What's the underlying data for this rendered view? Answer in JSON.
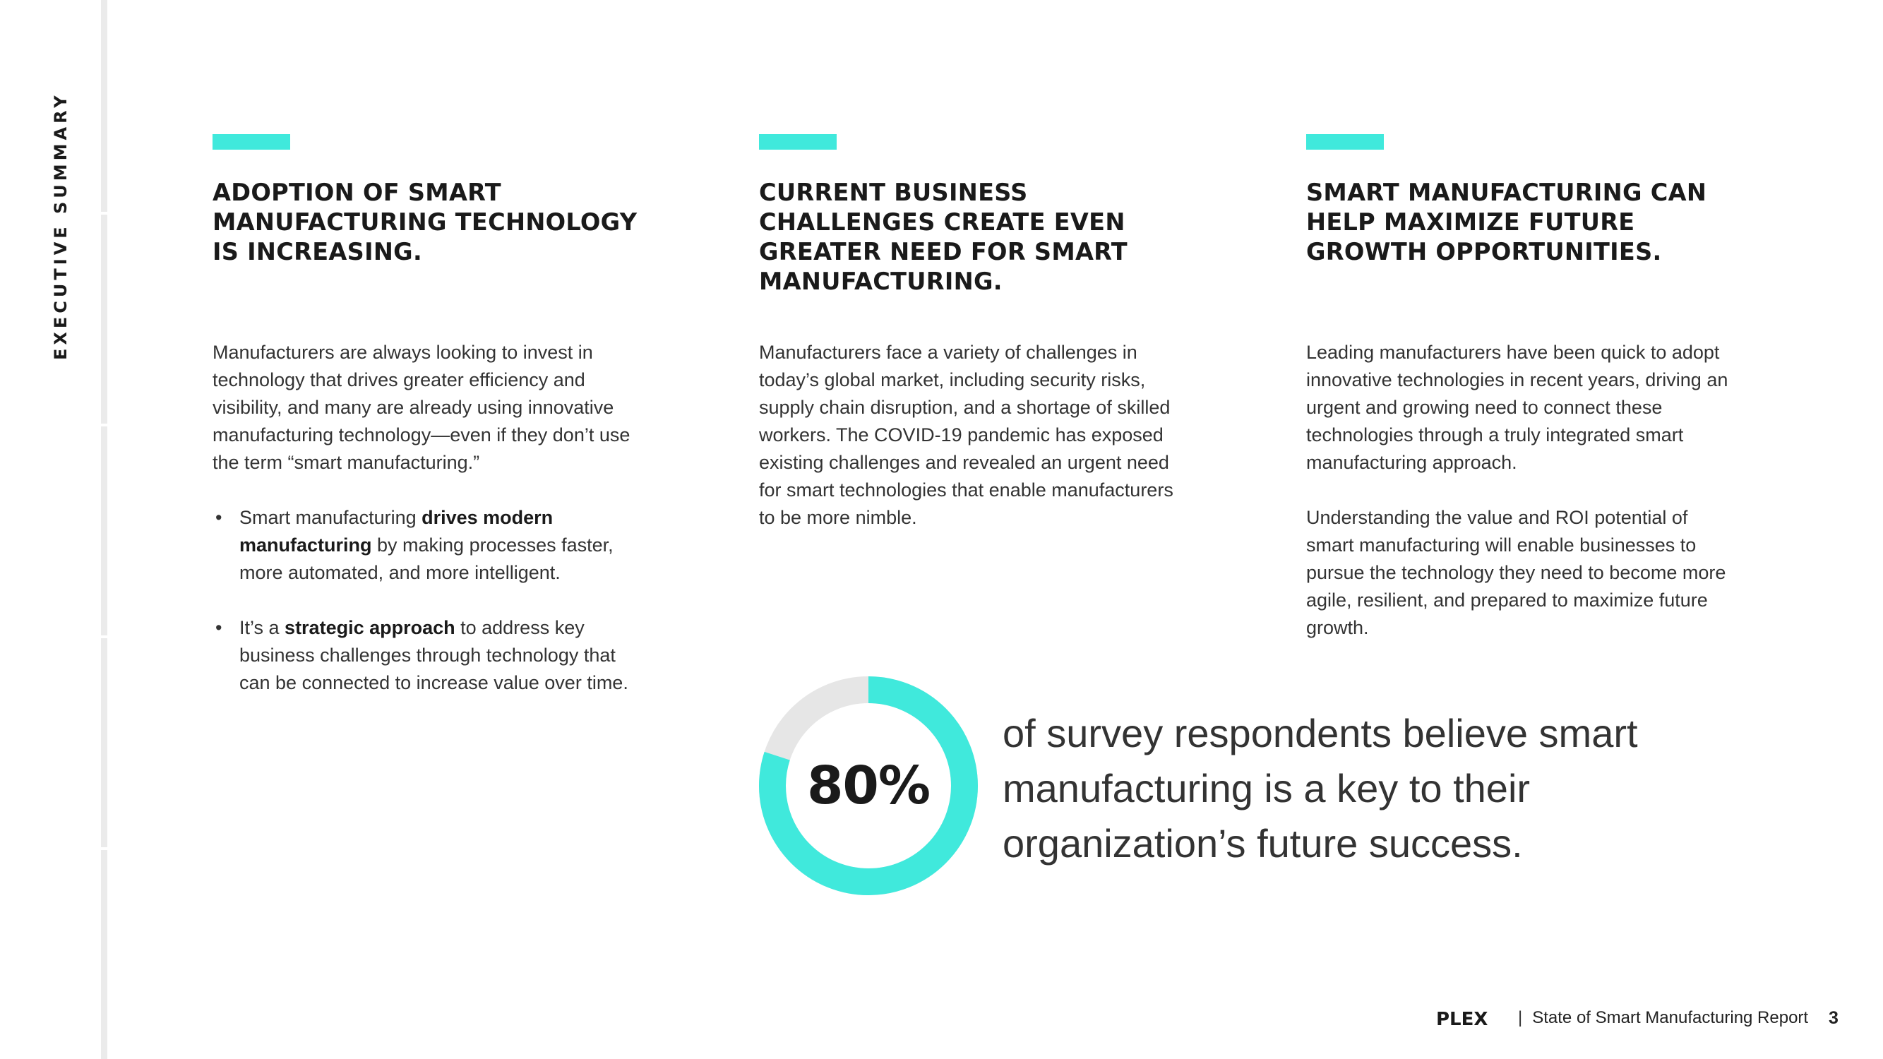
{
  "sidebar": {
    "section_label": "EXECUTIVE SUMMARY"
  },
  "colors": {
    "accent": "#40e9dc",
    "donut_track": "#e6e6e6",
    "text": "#222222"
  },
  "columns": [
    {
      "title": "ADOPTION OF SMART MANUFACTURING TECHNOLOGY IS INCREASING.",
      "paragraph": "Manufacturers are always looking to invest in technology that drives greater efficiency and visibility, and many are already using innovative manufacturing technology—even if they don’t use the term “smart manufacturing.”",
      "bullets": [
        {
          "before": "Smart manufacturing ",
          "bold": "drives modern manufacturing",
          "after": " by making processes faster, more automated, and more intelligent."
        },
        {
          "before": "It’s a ",
          "bold": "strategic approach",
          "after": " to address key business challenges through technology that can be connected to increase value over time."
        }
      ]
    },
    {
      "title": "CURRENT BUSINESS CHALLENGES CREATE EVEN GREATER NEED FOR SMART MANUFACTURING.",
      "paragraph": "Manufacturers face a variety of challenges in today’s global market, including security risks, supply chain disruption, and a shortage of skilled workers. The COVID-19 pandemic has exposed existing challenges and revealed an urgent need for smart technologies that enable manufacturers to be more nimble."
    },
    {
      "title": "SMART MANUFACTURING CAN HELP MAXIMIZE FUTURE GROWTH OPPORTUNITIES.",
      "paragraphs": [
        "Leading manufacturers have been quick to adopt innovative technologies in recent years, driving an urgent and growing need to connect these technologies through a truly integrated smart manufacturing approach.",
        "Understanding the value and ROI potential of smart manufacturing will enable businesses to pursue the technology they need to become more agile, resilient, and prepared to maximize future growth."
      ]
    }
  ],
  "stat": {
    "value_label": "80%",
    "fraction": 0.8,
    "text": "of survey respondents believe smart manufacturing is a key to their organization’s future success."
  },
  "footer": {
    "logo_text": "PLEX",
    "separator": "|",
    "report_title": "State of Smart Manufacturing Report",
    "page_number": "3"
  }
}
